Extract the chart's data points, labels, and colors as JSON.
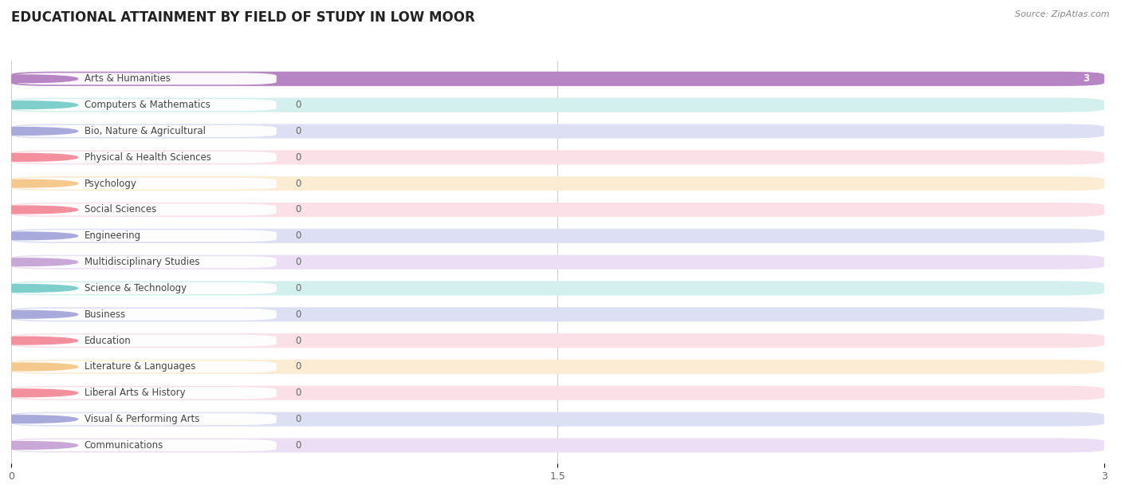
{
  "title": "EDUCATIONAL ATTAINMENT BY FIELD OF STUDY IN LOW MOOR",
  "source": "Source: ZipAtlas.com",
  "categories": [
    "Arts & Humanities",
    "Computers & Mathematics",
    "Bio, Nature & Agricultural",
    "Physical & Health Sciences",
    "Psychology",
    "Social Sciences",
    "Engineering",
    "Multidisciplinary Studies",
    "Science & Technology",
    "Business",
    "Education",
    "Literature & Languages",
    "Liberal Arts & History",
    "Visual & Performing Arts",
    "Communications"
  ],
  "values": [
    3,
    0,
    0,
    0,
    0,
    0,
    0,
    0,
    0,
    0,
    0,
    0,
    0,
    0,
    0
  ],
  "bar_colors": [
    "#b784c4",
    "#7ecfcb",
    "#a8aadc",
    "#f4909e",
    "#f5c98e",
    "#f4909e",
    "#a8aadc",
    "#c9a8d8",
    "#7ecfcb",
    "#a8aadc",
    "#f4909e",
    "#f5c98e",
    "#f4909e",
    "#a8aadc",
    "#c9a8d8"
  ],
  "background_colors": [
    "#ecdff5",
    "#d4f0ee",
    "#dddff5",
    "#fbe0e8",
    "#fdecd4",
    "#fbe0e8",
    "#dddff5",
    "#ecdff5",
    "#d4f0ee",
    "#dddff5",
    "#fbe0e8",
    "#fdecd4",
    "#fbe0e8",
    "#dddff5",
    "#ecdff5"
  ],
  "xlim": [
    0,
    3
  ],
  "xticks": [
    0,
    1.5,
    3
  ],
  "title_fontsize": 12,
  "label_fontsize": 8.5,
  "value_fontsize": 8.5,
  "background_color": "#ffffff"
}
